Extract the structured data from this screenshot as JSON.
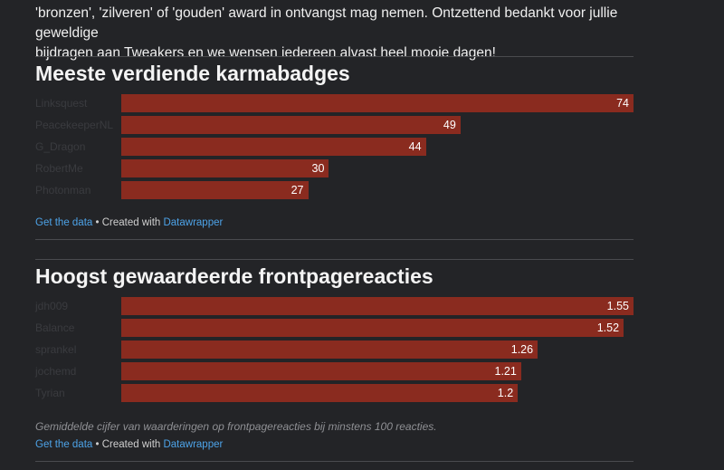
{
  "intro_text": {
    "line1": "'bronzen', 'zilveren' of 'gouden' award in ontvangst mag nemen. Ontzettend bedankt voor jullie geweldige",
    "line2": "bijdragen aan Tweakers en we wensen iedereen alvast heel mooie dagen!"
  },
  "footer": {
    "get_data": "Get the data",
    "separator": "• Created with",
    "tool": "Datawrapper"
  },
  "chart_data": [
    {
      "type": "bar",
      "title": "Meeste verdiende karmabadges",
      "categories": [
        "Linksquest",
        "PeacekeeperNL",
        "G_Dragon",
        "RobertMe",
        "Photonman"
      ],
      "values": [
        74,
        49,
        44,
        30,
        27
      ],
      "value_labels": [
        "74",
        "49",
        "44",
        "30",
        "27"
      ],
      "xlim": [
        0,
        74
      ],
      "bar_color": "#8a2b1f"
    },
    {
      "type": "bar",
      "title": "Hoogst gewaardeerde frontpagereacties",
      "categories": [
        "jdh009",
        "Balance",
        "sprankel",
        "jochemd",
        "Tyrian"
      ],
      "values": [
        1.55,
        1.52,
        1.26,
        1.21,
        1.2
      ],
      "value_labels": [
        "1.55",
        "1.52",
        "1.26",
        "1.21",
        "1.2"
      ],
      "xlim": [
        0,
        1.55
      ],
      "bar_color": "#8a2b1f",
      "note": "Gemiddelde cijfer van waarderingen op frontpagereacties bij minstens 100 reacties."
    }
  ]
}
